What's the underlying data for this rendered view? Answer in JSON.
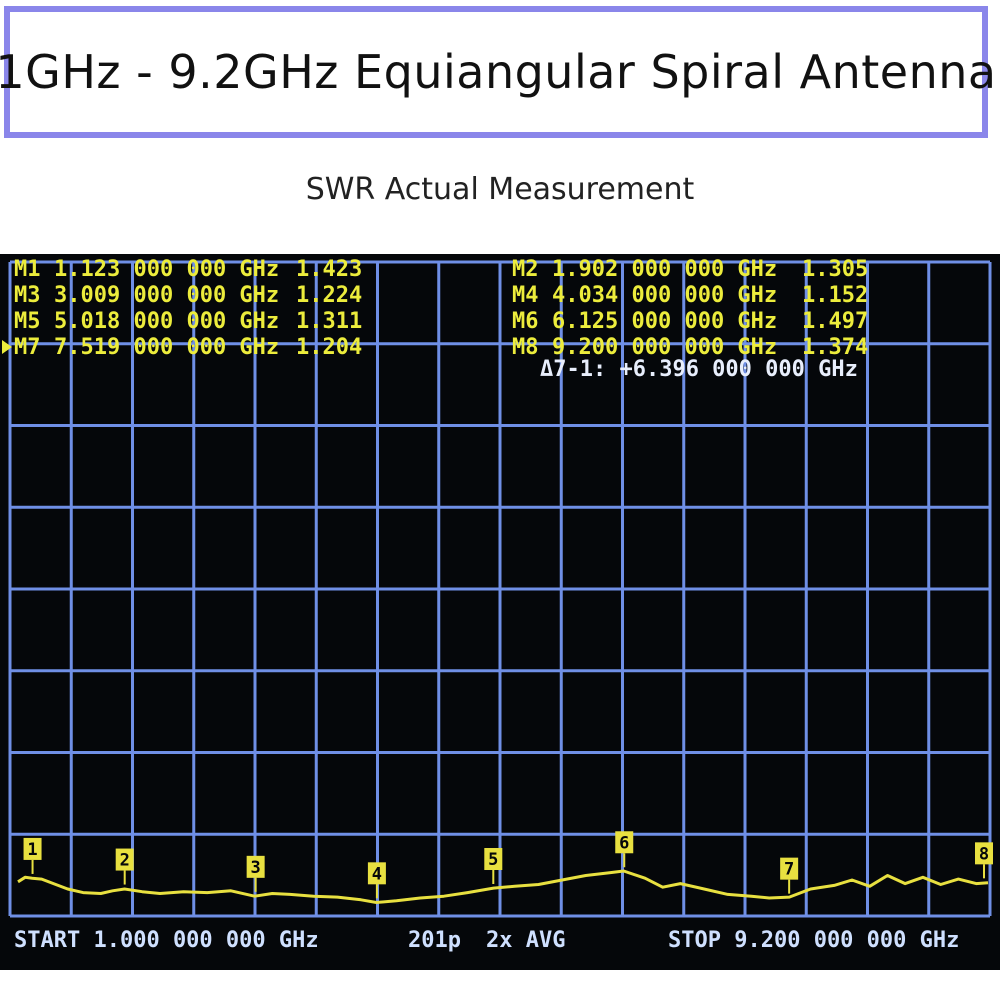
{
  "page": {
    "title": "1GHz - 9.2GHz Equiangular Spiral Antenna",
    "subtitle": "SWR Actual Measurement"
  },
  "colors": {
    "title_border": "#8a86ea",
    "screen_bg": "#05070a",
    "grid": "#6f8fe6",
    "trace": "#e8e040",
    "marker_text": "#ecec3c",
    "delta_text": "#e8eefc",
    "footer_text": "#cfe0ff"
  },
  "display": {
    "markers_left": [
      {
        "label": "M1",
        "freq": "1.123 000 000 GHz",
        "value": "1.423",
        "active": false
      },
      {
        "label": "M3",
        "freq": "3.009 000 000 GHz",
        "value": "1.224",
        "active": false
      },
      {
        "label": "M5",
        "freq": "5.018 000 000 GHz",
        "value": "1.311",
        "active": false
      },
      {
        "label": "M7",
        "freq": "7.519 000 000 GHz",
        "value": "1.204",
        "active": true
      }
    ],
    "markers_right": [
      {
        "label": "M2",
        "freq": "1.902 000 000 GHz",
        "value": "1.305"
      },
      {
        "label": "M4",
        "freq": "4.034 000 000 GHz",
        "value": "1.152"
      },
      {
        "label": "M6",
        "freq": "6.125 000 000 GHz",
        "value": "1.497"
      },
      {
        "label": "M8",
        "freq": "9.200 000 000 GHz",
        "value": "1.374"
      }
    ],
    "delta": "Δ7-1: +6.396 000 000 GHz",
    "footer": {
      "start": "START 1.000 000 000 GHz",
      "points": "201p",
      "avg": "2x AVG",
      "stop": "STOP 9.200 000 000 GHz"
    }
  },
  "chart_data": {
    "type": "line",
    "xlim": [
      1.0,
      9.2
    ],
    "x_unit": "GHz",
    "grid": true,
    "series": [
      {
        "x": [
          1.0,
          1.06,
          1.12,
          1.2,
          1.3,
          1.42,
          1.55,
          1.7,
          1.8,
          1.9,
          2.05,
          2.2,
          2.4,
          2.6,
          2.8,
          3.0,
          3.15,
          3.3,
          3.5,
          3.7,
          3.9,
          4.03,
          4.2,
          4.4,
          4.6,
          4.8,
          5.02,
          5.2,
          5.4,
          5.6,
          5.8,
          6.0,
          6.12,
          6.3,
          6.45,
          6.6,
          6.8,
          7.0,
          7.2,
          7.35,
          7.52,
          7.7,
          7.9,
          8.05,
          8.2,
          8.35,
          8.5,
          8.65,
          8.8,
          8.95,
          9.1,
          9.2
        ],
        "y": [
          1.38,
          1.43,
          1.42,
          1.41,
          1.36,
          1.3,
          1.26,
          1.25,
          1.28,
          1.3,
          1.27,
          1.25,
          1.27,
          1.26,
          1.28,
          1.22,
          1.25,
          1.24,
          1.22,
          1.21,
          1.18,
          1.15,
          1.17,
          1.2,
          1.22,
          1.26,
          1.31,
          1.33,
          1.35,
          1.4,
          1.45,
          1.48,
          1.5,
          1.42,
          1.32,
          1.36,
          1.3,
          1.24,
          1.22,
          1.2,
          1.21,
          1.3,
          1.34,
          1.4,
          1.33,
          1.45,
          1.36,
          1.43,
          1.35,
          1.41,
          1.36,
          1.37
        ]
      }
    ],
    "markers": [
      {
        "id": "1",
        "x": 1.123,
        "y": 1.423
      },
      {
        "id": "2",
        "x": 1.902,
        "y": 1.305
      },
      {
        "id": "3",
        "x": 3.009,
        "y": 1.224
      },
      {
        "id": "4",
        "x": 4.034,
        "y": 1.152
      },
      {
        "id": "5",
        "x": 5.018,
        "y": 1.311
      },
      {
        "id": "6",
        "x": 6.125,
        "y": 1.497
      },
      {
        "id": "7",
        "x": 7.519,
        "y": 1.204
      },
      {
        "id": "8",
        "x": 9.2,
        "y": 1.374
      }
    ]
  }
}
